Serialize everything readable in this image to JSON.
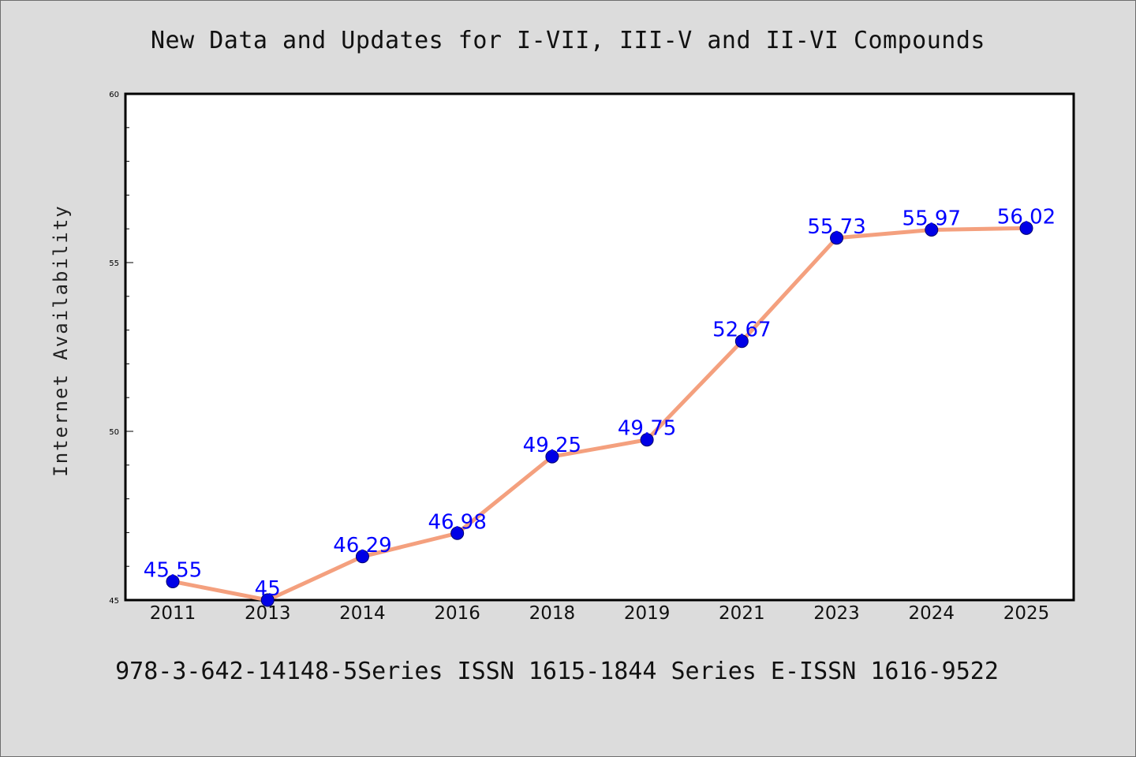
{
  "title": "New Data and Updates for I-VII, III-V and II-VI Compounds",
  "footnote": "978-3-642-14148-5Series ISSN 1615-1844 Series E-ISSN 1616-9522",
  "colors": {
    "background": "#dcdcdc",
    "plot_background": "#ffffff",
    "line": "#f4a07e",
    "marker": "#0000e6",
    "label": "#0000ff"
  },
  "chart_data": {
    "type": "line",
    "title": "New Data and Updates for I-VII, III-V and II-VI Compounds",
    "xlabel": "",
    "ylabel": "Internet Availability",
    "categories": [
      "2011",
      "2013",
      "2014",
      "2016",
      "2018",
      "2019",
      "2021",
      "2023",
      "2024",
      "2025"
    ],
    "series": [
      {
        "values": [
          45.55,
          45,
          46.29,
          46.98,
          49.25,
          49.75,
          52.67,
          55.73,
          55.97,
          56.02
        ],
        "labels": [
          "45.55",
          "45",
          "46.29",
          "46.98",
          "49.25",
          "49.75",
          "52.67",
          "55.73",
          "55.97",
          "56.02"
        ]
      }
    ],
    "ylim": [
      45,
      60
    ],
    "yticks": [
      45,
      50,
      55,
      60
    ],
    "grid": false,
    "legend": "none"
  }
}
